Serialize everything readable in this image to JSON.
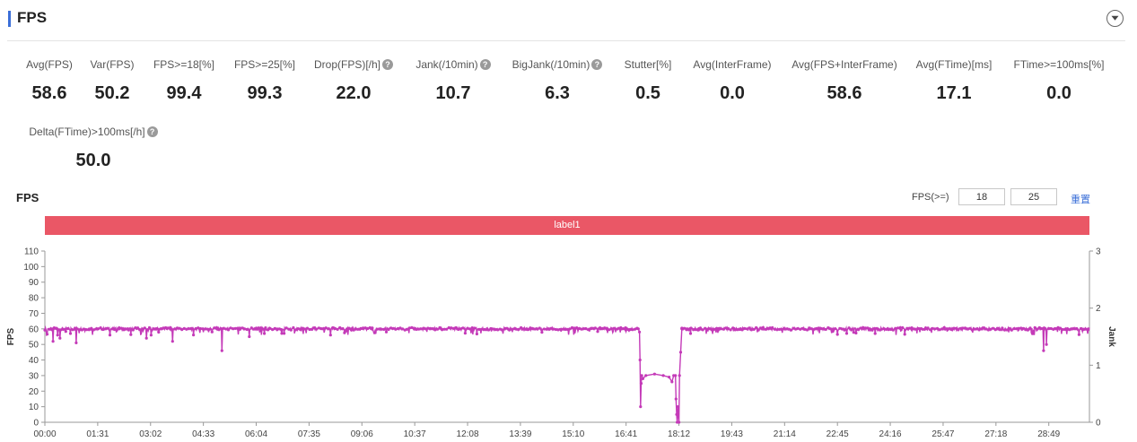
{
  "header": {
    "title": "FPS"
  },
  "metrics": [
    {
      "label": "Avg(FPS)",
      "value": "58.6",
      "help": false
    },
    {
      "label": "Var(FPS)",
      "value": "50.2",
      "help": false
    },
    {
      "label": "FPS>=18[%]",
      "value": "99.4",
      "help": false
    },
    {
      "label": "FPS>=25[%]",
      "value": "99.3",
      "help": false
    },
    {
      "label": "Drop(FPS)[/h]",
      "value": "22.0",
      "help": true
    },
    {
      "label": "Jank(/10min)",
      "value": "10.7",
      "help": true
    },
    {
      "label": "BigJank(/10min)",
      "value": "6.3",
      "help": true
    },
    {
      "label": "Stutter[%]",
      "value": "0.5",
      "help": false
    },
    {
      "label": "Avg(InterFrame)",
      "value": "0.0",
      "help": false
    },
    {
      "label": "Avg(FPS+InterFrame)",
      "value": "58.6",
      "help": false
    },
    {
      "label": "Avg(FTime)[ms]",
      "value": "17.1",
      "help": false
    },
    {
      "label": "FTime>=100ms[%]",
      "value": "0.0",
      "help": false
    },
    {
      "label": "Delta(FTime)>100ms[/h]",
      "value": "50.0",
      "help": true
    }
  ],
  "chart_section": {
    "title": "FPS",
    "threshold_label": "FPS(>=)",
    "threshold_low": "18",
    "threshold_high": "25",
    "reset_label": "重置",
    "label_bar": "label1"
  },
  "chart_data": {
    "type": "line",
    "ylabel": "FPS",
    "y2label": "Jank",
    "ylim": [
      0,
      110
    ],
    "y2lim": [
      0,
      3
    ],
    "yticks": [
      0,
      10,
      20,
      30,
      40,
      50,
      60,
      70,
      80,
      90,
      100,
      110
    ],
    "y2ticks": [
      0,
      1,
      2,
      3
    ],
    "xticks": [
      "00:00",
      "01:31",
      "03:02",
      "04:33",
      "06:04",
      "07:35",
      "09:06",
      "10:37",
      "12:08",
      "13:39",
      "15:10",
      "16:41",
      "18:12",
      "19:43",
      "21:14",
      "22:45",
      "24:16",
      "25:47",
      "27:18",
      "28:49"
    ],
    "x_range_seconds": [
      0,
      1799
    ],
    "series_color": "#c43ab8",
    "series": [
      {
        "name": "FPS",
        "baseline": 60,
        "dips": [
          [
            14,
            52
          ],
          [
            22,
            56
          ],
          [
            26,
            54
          ],
          [
            44,
            57
          ],
          [
            54,
            51
          ],
          [
            175,
            54
          ],
          [
            183,
            56
          ],
          [
            220,
            52
          ],
          [
            305,
            46
          ],
          [
            352,
            55
          ],
          [
            378,
            57
          ],
          [
            588,
            58
          ],
          [
            1080,
            56
          ],
          [
            1112,
            57
          ],
          [
            1430,
            57
          ],
          [
            1720,
            46
          ],
          [
            1725,
            50
          ]
        ],
        "drop_segment": [
          [
            1022,
            60
          ],
          [
            1024,
            58
          ],
          [
            1025,
            40
          ],
          [
            1026,
            10
          ],
          [
            1027,
            25
          ],
          [
            1028,
            30
          ],
          [
            1030,
            28
          ],
          [
            1035,
            30
          ],
          [
            1050,
            31
          ],
          [
            1065,
            30
          ],
          [
            1075,
            29
          ],
          [
            1080,
            26
          ],
          [
            1083,
            30
          ],
          [
            1086,
            30
          ],
          [
            1087,
            15
          ],
          [
            1088,
            5
          ],
          [
            1089,
            0
          ],
          [
            1090,
            10
          ],
          [
            1092,
            0
          ],
          [
            1093,
            30
          ],
          [
            1095,
            45
          ],
          [
            1097,
            60
          ]
        ]
      }
    ]
  }
}
